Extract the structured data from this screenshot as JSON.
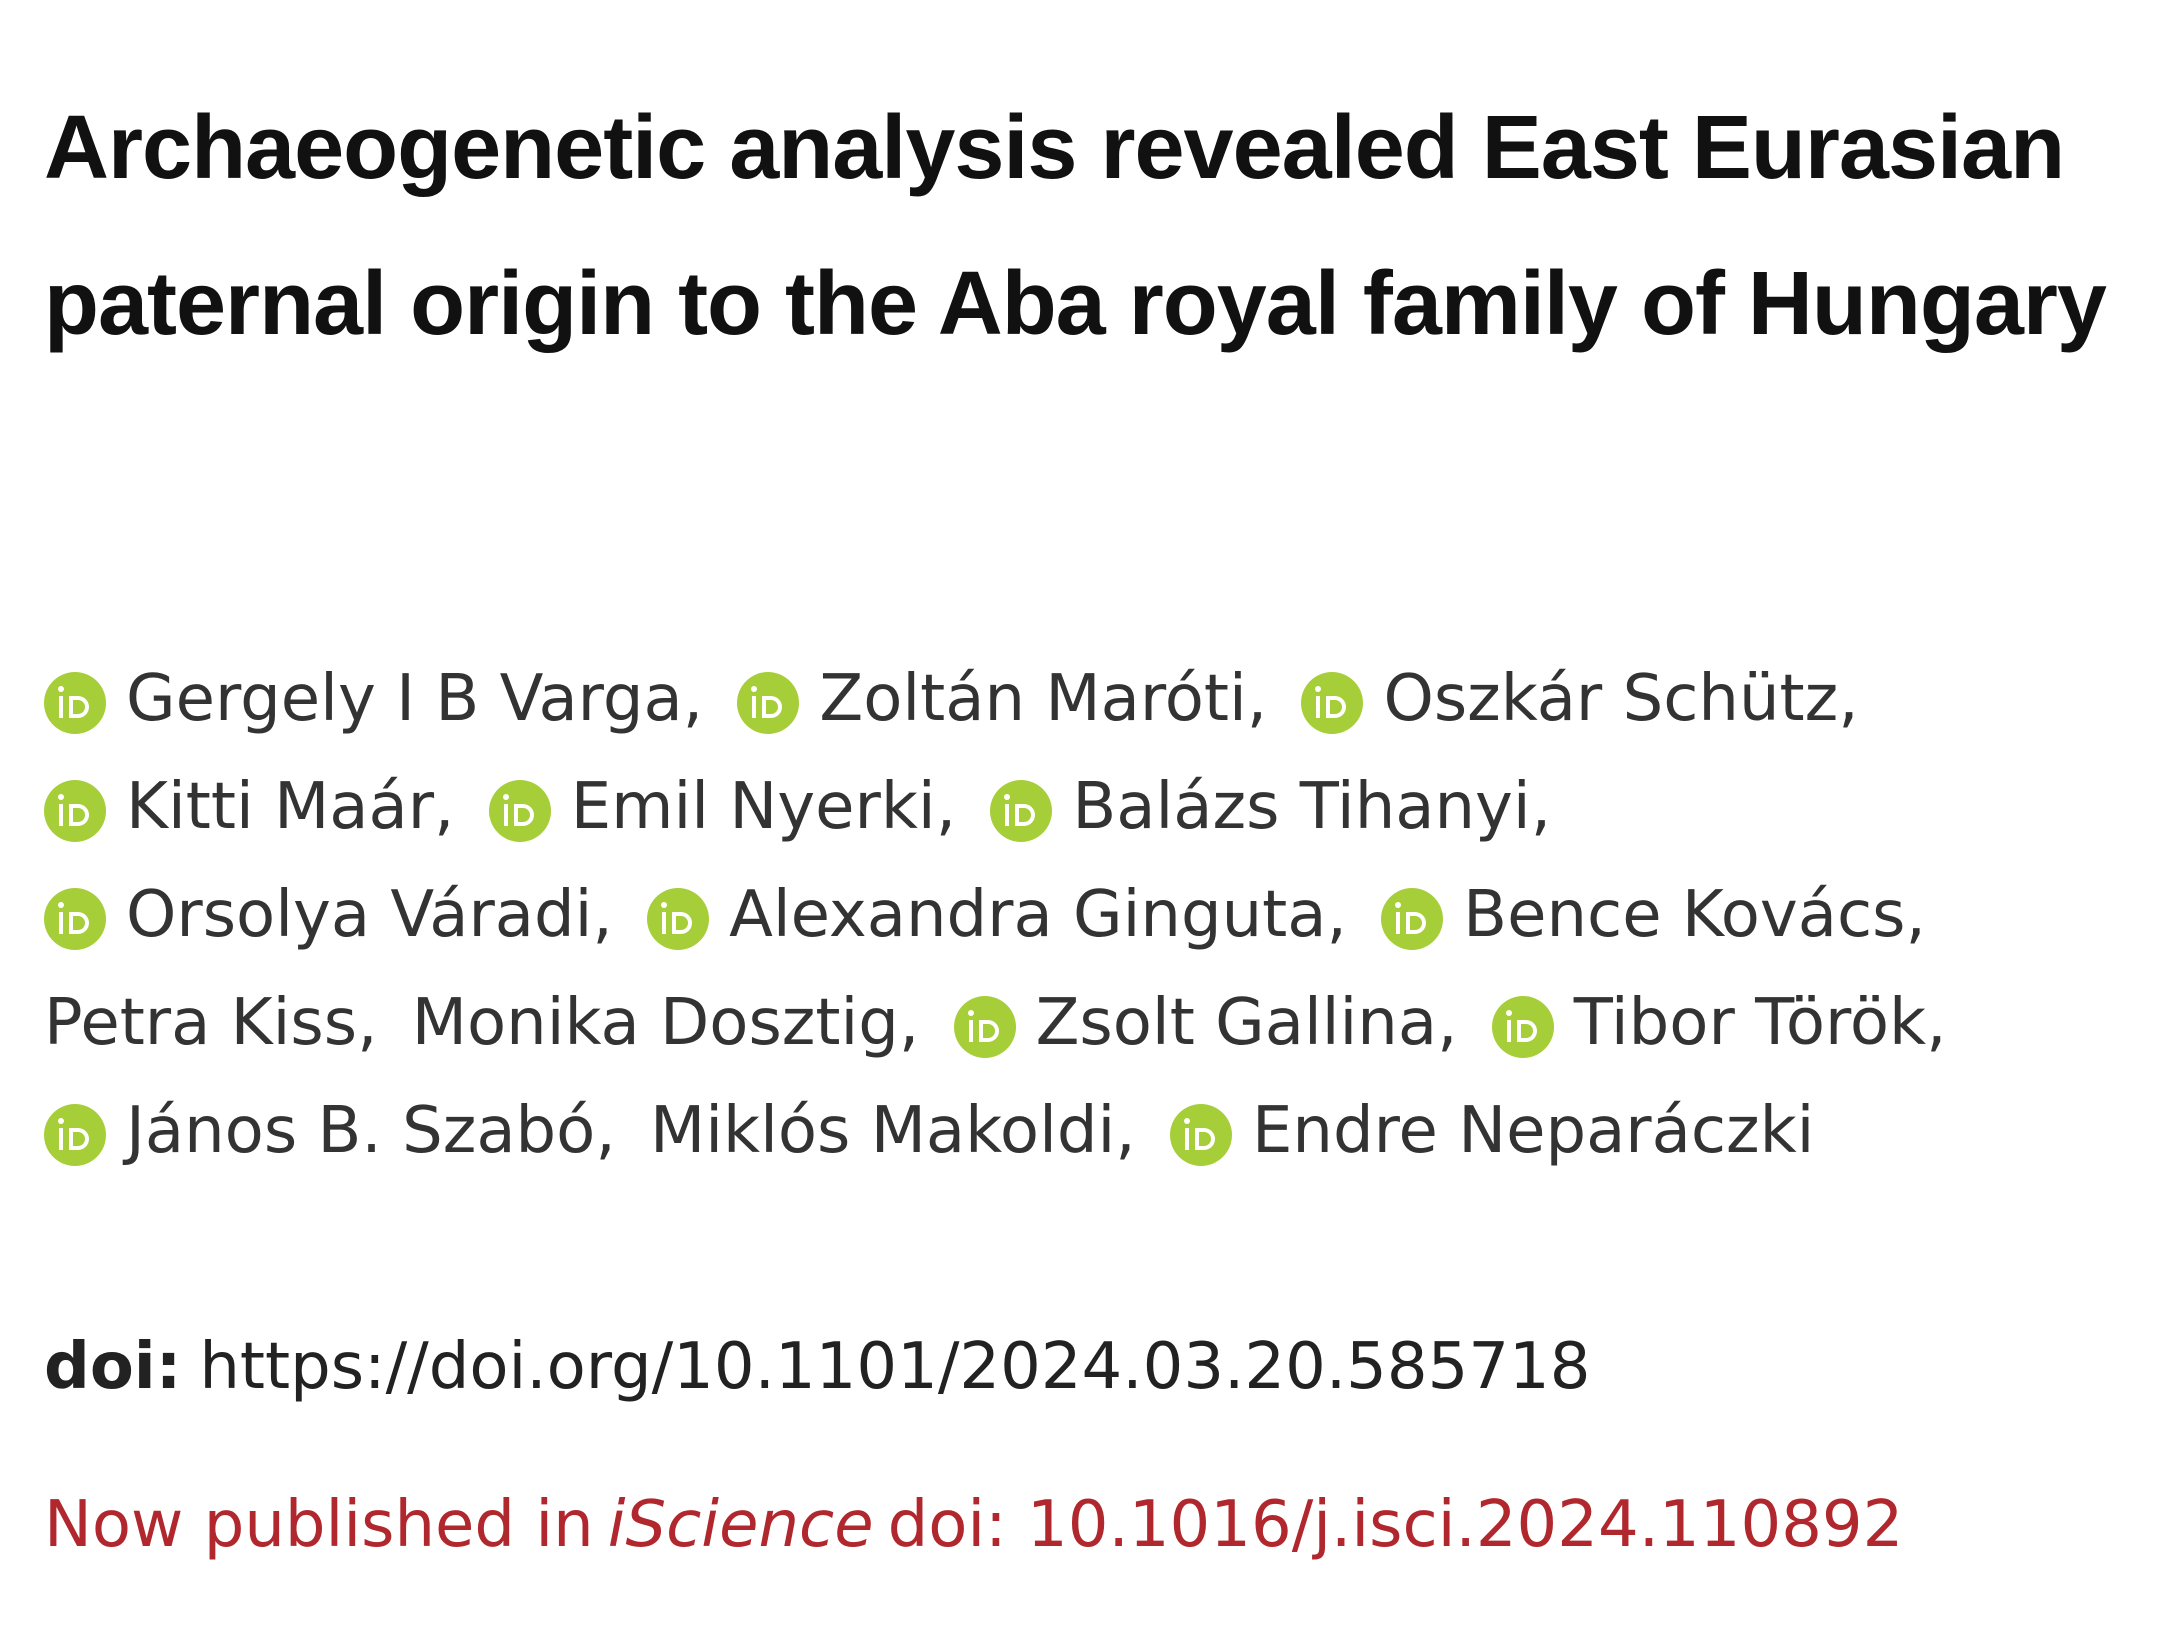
{
  "header": {
    "title": "Archaeogenetic analysis revealed East Eurasian paternal origin to the Aba royal family of Hungary"
  },
  "authors": {
    "separator": ",",
    "list": [
      {
        "name": "Gergely I B Varga",
        "orcid": true
      },
      {
        "name": "Zoltán Maróti",
        "orcid": true
      },
      {
        "name": "Oszkár Schütz",
        "orcid": true
      },
      {
        "name": "Kitti Maár",
        "orcid": true
      },
      {
        "name": "Emil Nyerki",
        "orcid": true
      },
      {
        "name": "Balázs Tihanyi",
        "orcid": true
      },
      {
        "name": "Orsolya Váradi",
        "orcid": true
      },
      {
        "name": "Alexandra Ginguta",
        "orcid": true
      },
      {
        "name": "Bence Kovács",
        "orcid": true
      },
      {
        "name": "Petra Kiss",
        "orcid": false
      },
      {
        "name": "Monika Dosztig",
        "orcid": false
      },
      {
        "name": "Zsolt Gallina",
        "orcid": true
      },
      {
        "name": "Tibor Török",
        "orcid": true
      },
      {
        "name": "János B. Szabó",
        "orcid": true
      },
      {
        "name": "Miklós Makoldi",
        "orcid": false
      },
      {
        "name": "Endre Neparáczki",
        "orcid": true
      }
    ]
  },
  "doi": {
    "label": "doi:",
    "url": "https://doi.org/10.1101/2024.03.20.585718"
  },
  "published": {
    "prefix": "Now published in",
    "journal": "iScience",
    "doi": "doi: 10.1016/j.isci.2024.110892"
  }
}
